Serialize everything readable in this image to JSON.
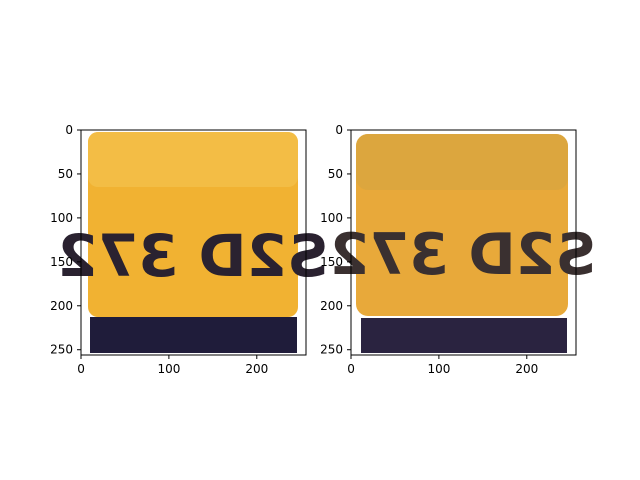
{
  "figure": {
    "panels": [
      {
        "id": "left",
        "x_ticks": [
          0,
          100,
          200
        ],
        "y_ticks": [
          0,
          50,
          100,
          150,
          200,
          250
        ],
        "x_range": [
          0,
          256
        ],
        "y_range": [
          256,
          0
        ],
        "image": {
          "plate_text": "S2D 372",
          "palette": {
            "body": "#f1b232",
            "top": "#f4bf4a",
            "band": "#1f1c3a",
            "text": "#2a2230"
          }
        }
      },
      {
        "id": "right",
        "x_ticks": [
          0,
          100,
          200
        ],
        "y_ticks": [
          0,
          50,
          100,
          150,
          200,
          250
        ],
        "x_range": [
          0,
          256
        ],
        "y_range": [
          256,
          0
        ],
        "image": {
          "plate_text": "S2D 372",
          "palette": {
            "body": "#e8a93a",
            "top": "#d9a640",
            "band": "#2a2340",
            "text": "#3a3030"
          }
        }
      }
    ]
  }
}
